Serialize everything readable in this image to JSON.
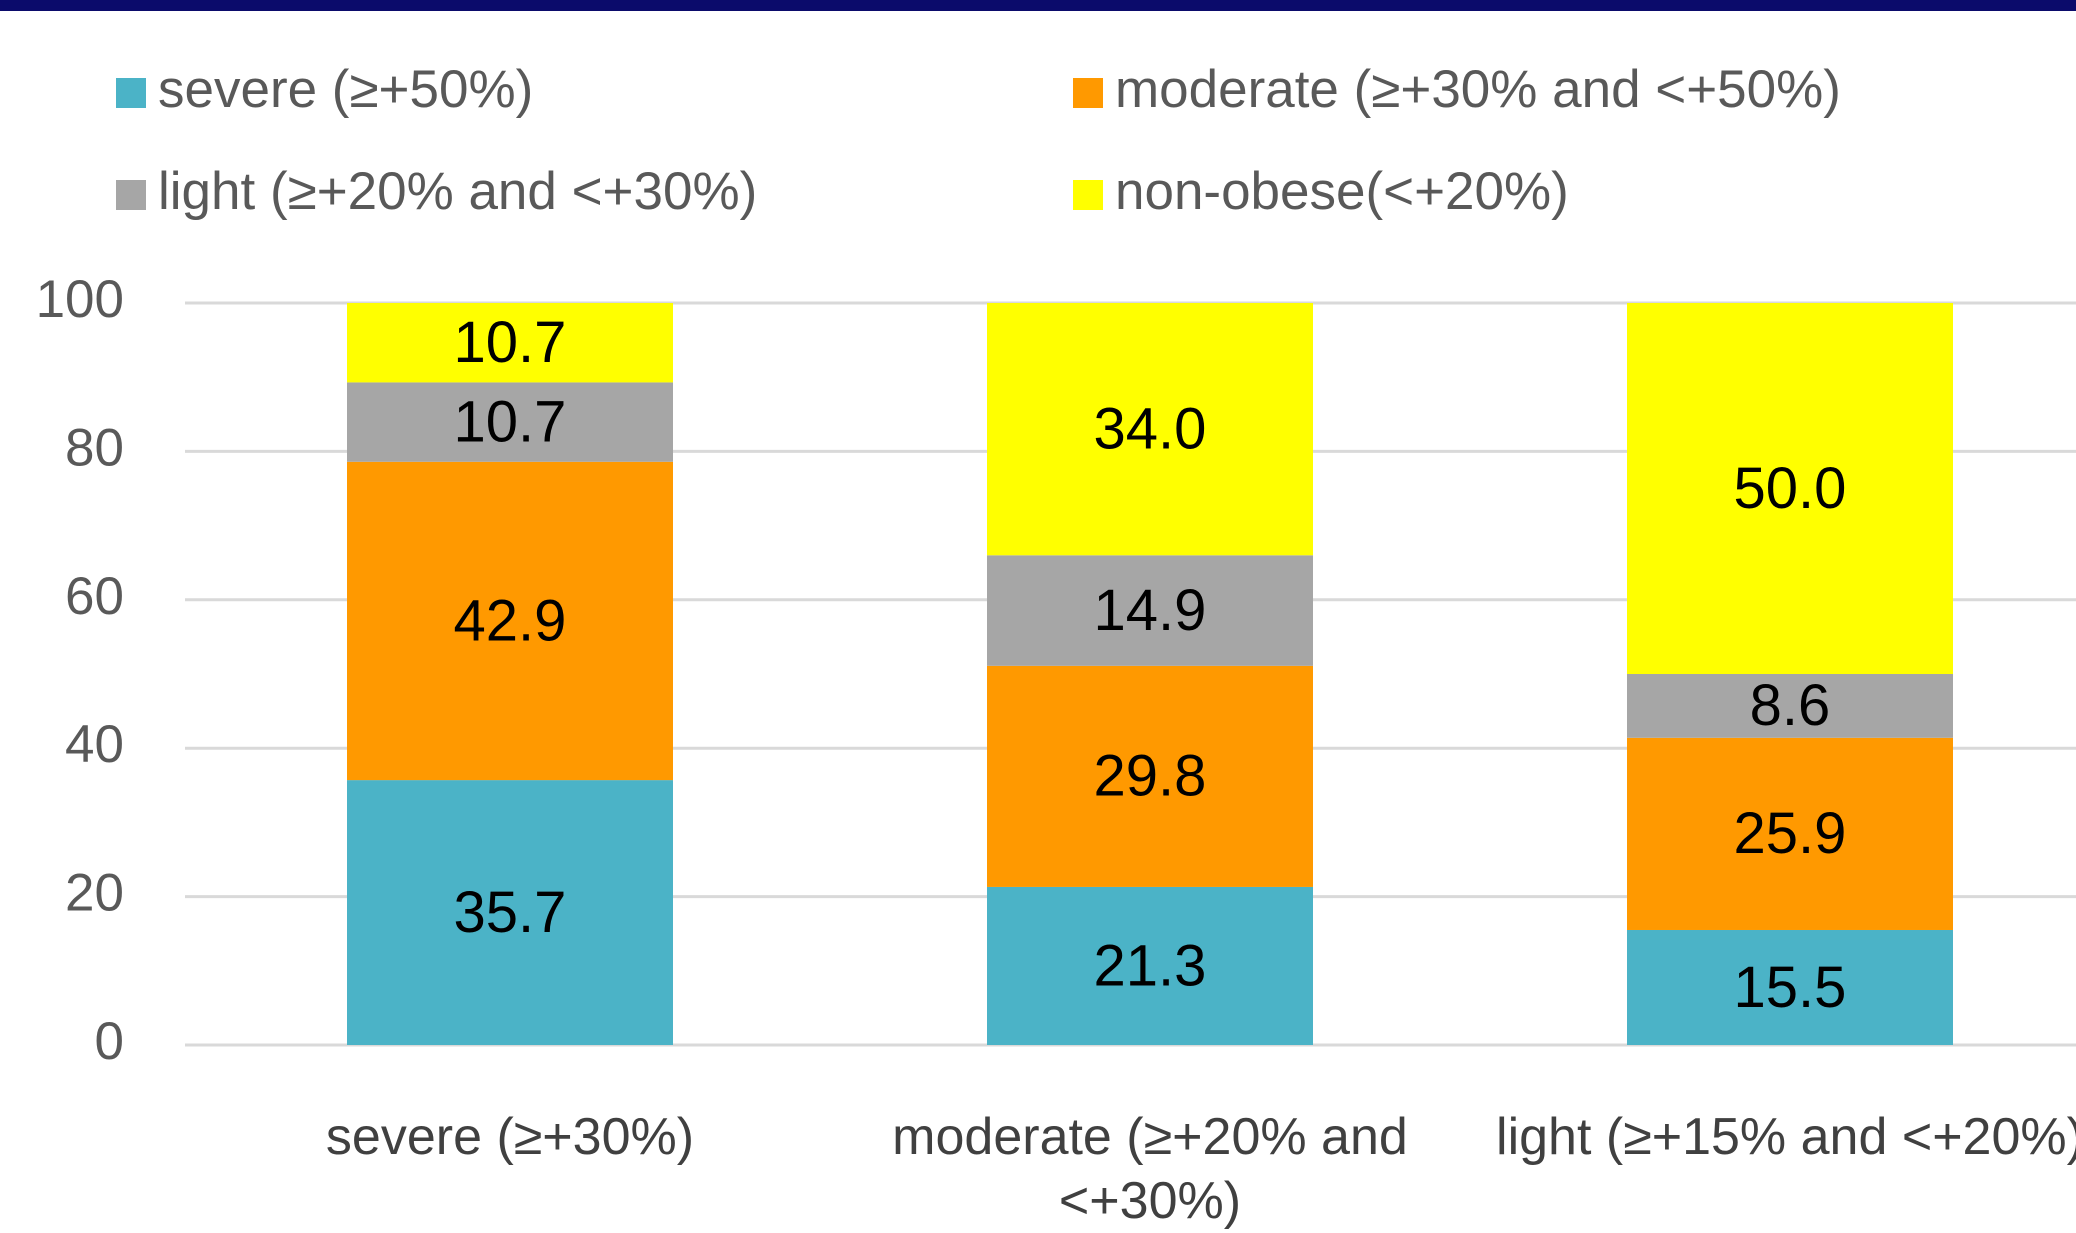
{
  "chart_data": {
    "type": "stacked_bar",
    "categories": [
      "severe (≥+30%)",
      "moderate (≥+20% and <+30%)",
      "light (≥+15% and <+20%)"
    ],
    "series": [
      {
        "name": "severe  (≥+50%)",
        "color": "#4bb3c7",
        "values": [
          35.7,
          21.3,
          15.5
        ],
        "value_labels": [
          "35.7",
          "21.3",
          "15.5"
        ]
      },
      {
        "name": "moderate (≥+30% and <+50%)",
        "color": "#ff9900",
        "values": [
          42.9,
          29.8,
          25.9
        ],
        "value_labels": [
          "42.9",
          "29.8",
          "25.9"
        ]
      },
      {
        "name": "light (≥+20% and <+30%)",
        "color": "#a6a6a6",
        "values": [
          10.7,
          14.9,
          8.6
        ],
        "value_labels": [
          "10.7",
          "14.9",
          "8.6"
        ]
      },
      {
        "name": "non-obese(<+20%)",
        "color": "#ffff00",
        "values": [
          10.7,
          34.0,
          50.0
        ],
        "value_labels": [
          "10.7",
          "34.0",
          "50.0"
        ]
      }
    ],
    "ylim": [
      0,
      100
    ],
    "yticks": [
      0,
      20,
      40,
      60,
      80,
      100
    ],
    "grid": true
  }
}
